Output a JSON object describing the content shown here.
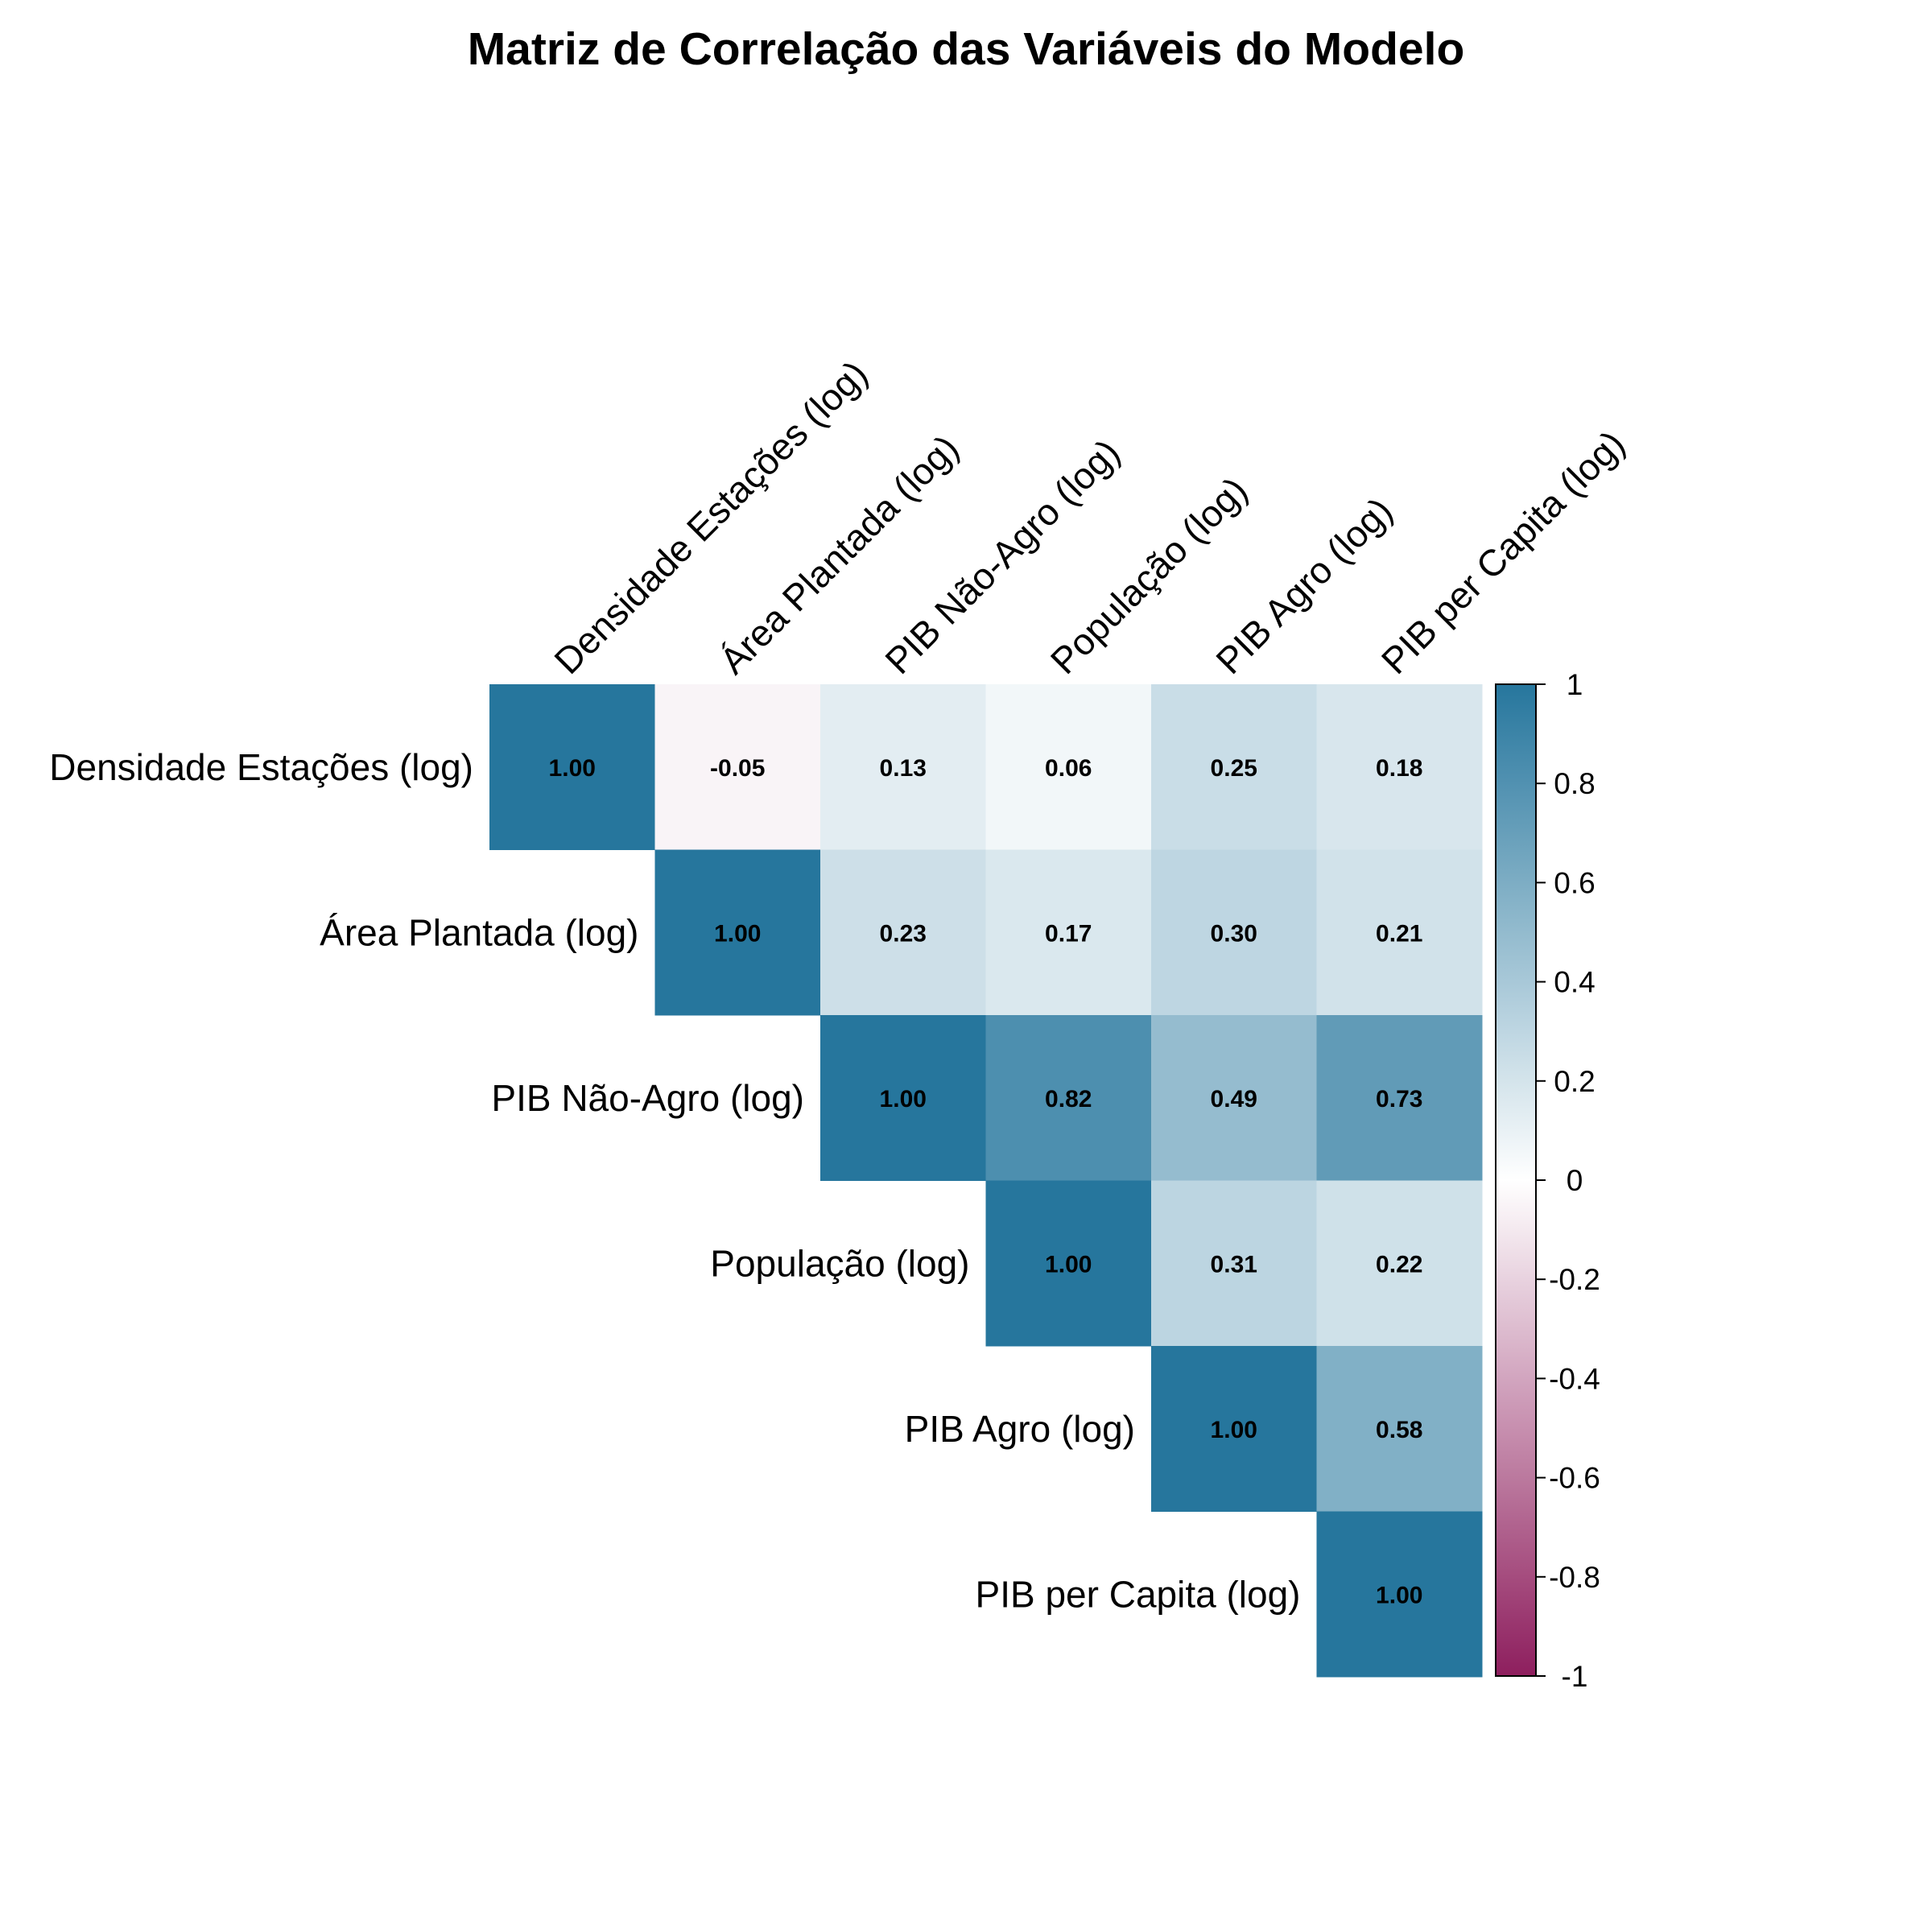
{
  "chart_data": {
    "type": "heatmap",
    "title": "Matriz de Correlação das Variáveis do Modelo",
    "variables": [
      "Densidade Estações (log)",
      "Área Plantada (log)",
      "PIB Não-Agro (log)",
      "População (log)",
      "PIB Agro (log)",
      "PIB per Capita (log)"
    ],
    "matrix": [
      [
        1.0,
        -0.05,
        0.13,
        0.06,
        0.25,
        0.18
      ],
      [
        null,
        1.0,
        0.23,
        0.17,
        0.3,
        0.21
      ],
      [
        null,
        null,
        1.0,
        0.82,
        0.49,
        0.73
      ],
      [
        null,
        null,
        null,
        1.0,
        0.31,
        0.22
      ],
      [
        null,
        null,
        null,
        null,
        1.0,
        0.58
      ],
      [
        null,
        null,
        null,
        null,
        null,
        1.0
      ]
    ],
    "display_values": [
      [
        "1.00",
        "-0.05",
        "0.13",
        "0.06",
        "0.25",
        "0.18"
      ],
      [
        null,
        "1.00",
        "0.23",
        "0.17",
        "0.30",
        "0.21"
      ],
      [
        null,
        null,
        "1.00",
        "0.82",
        "0.49",
        "0.73"
      ],
      [
        null,
        null,
        null,
        "1.00",
        "0.31",
        "0.22"
      ],
      [
        null,
        null,
        null,
        null,
        "1.00",
        "0.58"
      ],
      [
        null,
        null,
        null,
        null,
        null,
        "1.00"
      ]
    ],
    "layout": "upper-triangle",
    "color_scale": {
      "min": -1,
      "max": 1,
      "negative_color": "#8e1f5e",
      "zero_color": "#ffffff",
      "positive_color": "#26769d"
    },
    "legend": {
      "position": "right",
      "ticks": [
        "1",
        "0.8",
        "0.6",
        "0.4",
        "0.2",
        "0",
        "-0.2",
        "-0.4",
        "-0.6",
        "-0.8",
        "-1"
      ]
    }
  }
}
